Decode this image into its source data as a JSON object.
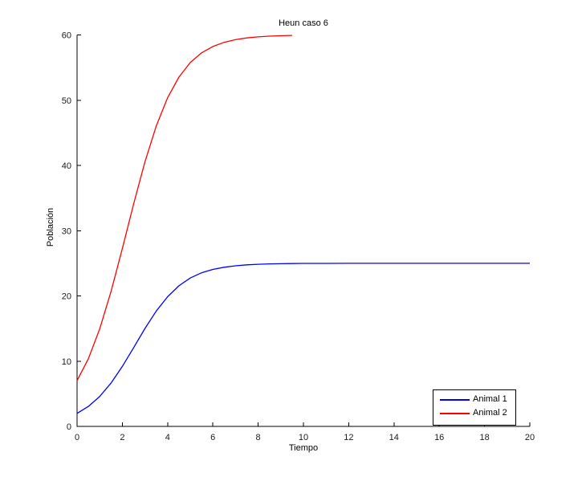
{
  "figure": {
    "background": "#ffffff",
    "text_color": "#1a1a1a",
    "axis_color": "#000000"
  },
  "chart_data": {
    "type": "line",
    "title": "Heun caso 6",
    "xlabel": "Tiempo",
    "ylabel": "Población",
    "xlim": [
      0,
      20
    ],
    "ylim": [
      0,
      60
    ],
    "xticks": [
      0,
      2,
      4,
      6,
      8,
      10,
      12,
      14,
      16,
      18,
      20
    ],
    "yticks": [
      0,
      10,
      20,
      30,
      40,
      50,
      60
    ],
    "grid": false,
    "box": false,
    "legend": {
      "position": "bottom-right",
      "border": true,
      "entries": [
        "Animal 1",
        "Animal 2"
      ]
    },
    "series": [
      {
        "name": "Animal 1",
        "color": "#0000ff",
        "x": [
          0,
          0.5,
          1,
          1.5,
          2,
          2.5,
          3,
          3.5,
          4,
          4.5,
          5,
          5.5,
          6,
          6.5,
          7,
          7.5,
          8,
          8.5,
          9,
          9.5,
          10,
          11,
          12,
          13,
          14,
          15,
          16,
          17,
          18,
          19,
          20
        ],
        "y": [
          2.0,
          3.07,
          4.59,
          6.64,
          9.19,
          12.08,
          15.01,
          17.69,
          19.88,
          21.55,
          22.74,
          23.54,
          24.06,
          24.4,
          24.62,
          24.76,
          24.85,
          24.91,
          24.94,
          24.96,
          24.98,
          24.99,
          25,
          25,
          25,
          25,
          25,
          25,
          25,
          25,
          25
        ]
      },
      {
        "name": "Animal 2",
        "color": "#ff0000",
        "x": [
          0,
          0.5,
          1,
          1.5,
          2,
          2.5,
          3,
          3.5,
          4,
          4.5,
          5,
          5.5,
          6,
          6.5,
          7,
          7.5,
          8,
          8.5,
          9,
          9.5
        ],
        "y": [
          7.0,
          10.38,
          14.94,
          20.66,
          27.25,
          34.1,
          40.57,
          46.07,
          50.38,
          53.54,
          55.76,
          57.25,
          58.23,
          58.87,
          59.28,
          59.55,
          59.71,
          59.82,
          59.88,
          59.93
        ]
      }
    ]
  }
}
